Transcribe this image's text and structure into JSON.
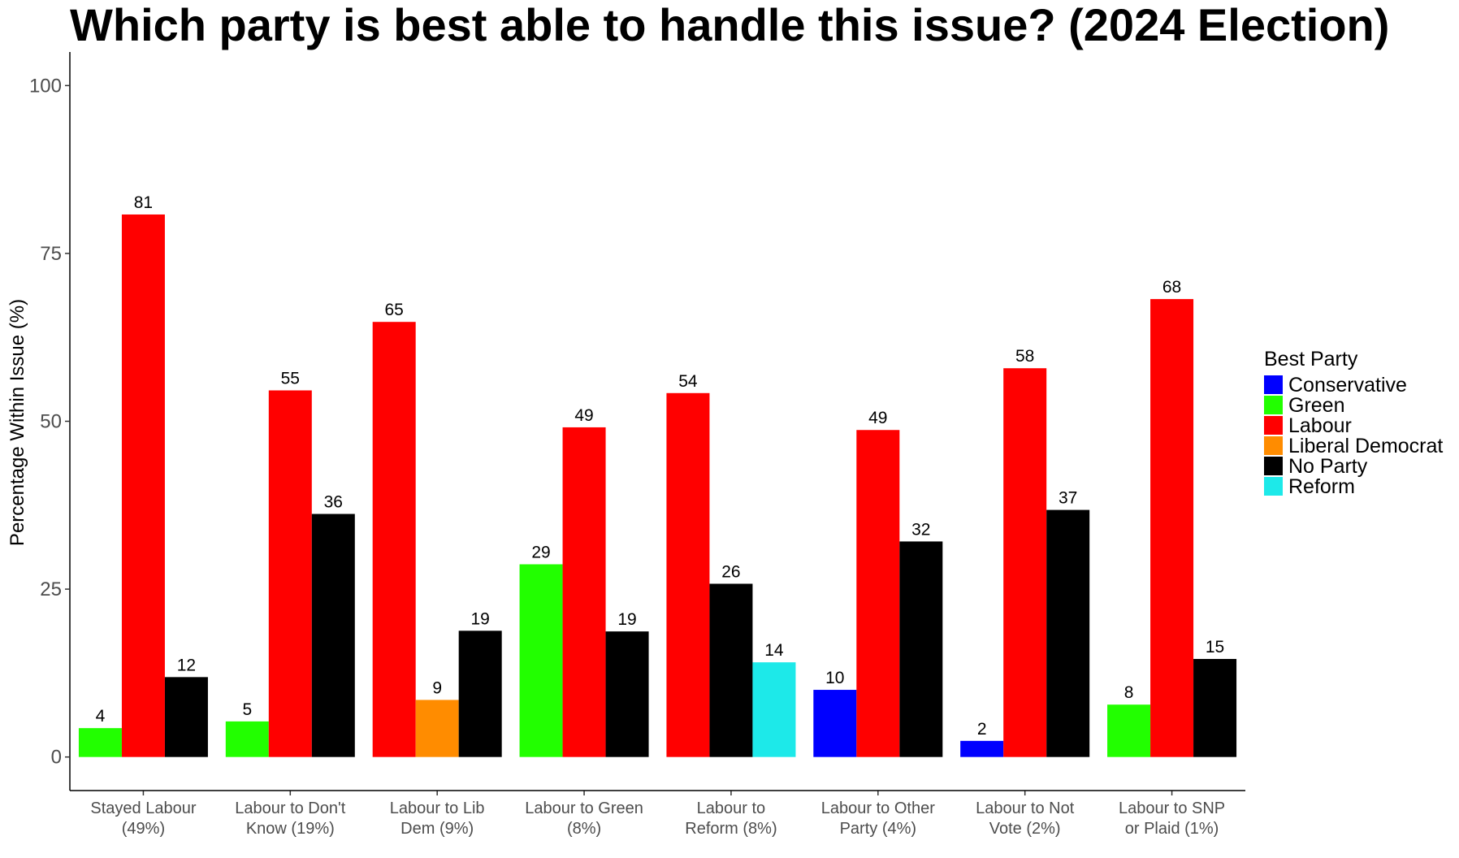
{
  "chart_data": {
    "type": "bar",
    "title": "Which party is best able to handle this issue? (2024 Election)",
    "xlabel": "",
    "ylabel": "Percentage Within Issue (%)",
    "ylim": [
      -5,
      105
    ],
    "yticks": [
      0,
      25,
      50,
      75,
      100
    ],
    "grid": false,
    "legend": {
      "title": "Best Party",
      "placement": "right",
      "entries": [
        {
          "name": "Conservative",
          "color": "#0000ff"
        },
        {
          "name": "Green",
          "color": "#22ff00"
        },
        {
          "name": "Labour",
          "color": "#ff0000"
        },
        {
          "name": "Liberal Democrat",
          "color": "#ff8c00"
        },
        {
          "name": "No Party",
          "color": "#000000"
        },
        {
          "name": "Reform",
          "color": "#1de9e9"
        }
      ]
    },
    "categories": [
      {
        "label_lines": [
          "Stayed Labour",
          "(49%)"
        ],
        "bars": [
          {
            "party": "Green",
            "value": 4.3,
            "label": "4"
          },
          {
            "party": "Labour",
            "value": 80.8,
            "label": "81"
          },
          {
            "party": "No Party",
            "value": 11.9,
            "label": "12"
          }
        ]
      },
      {
        "label_lines": [
          "Labour to Don't",
          "Know (19%)"
        ],
        "bars": [
          {
            "party": "Green",
            "value": 5.3,
            "label": "5"
          },
          {
            "party": "Labour",
            "value": 54.6,
            "label": "55"
          },
          {
            "party": "No Party",
            "value": 36.2,
            "label": "36"
          }
        ]
      },
      {
        "label_lines": [
          "Labour to Lib",
          "Dem (9%)"
        ],
        "bars": [
          {
            "party": "Labour",
            "value": 64.8,
            "label": "65"
          },
          {
            "party": "Liberal Democrat",
            "value": 8.5,
            "label": "9"
          },
          {
            "party": "No Party",
            "value": 18.8,
            "label": "19"
          }
        ]
      },
      {
        "label_lines": [
          "Labour to Green",
          "(8%)"
        ],
        "bars": [
          {
            "party": "Green",
            "value": 28.7,
            "label": "29"
          },
          {
            "party": "Labour",
            "value": 49.1,
            "label": "49"
          },
          {
            "party": "No Party",
            "value": 18.7,
            "label": "19"
          }
        ]
      },
      {
        "label_lines": [
          "Labour to",
          "Reform (8%)"
        ],
        "bars": [
          {
            "party": "Labour",
            "value": 54.2,
            "label": "54"
          },
          {
            "party": "No Party",
            "value": 25.8,
            "label": "26"
          },
          {
            "party": "Reform",
            "value": 14.1,
            "label": "14"
          }
        ]
      },
      {
        "label_lines": [
          "Labour to Other",
          "Party (4%)"
        ],
        "bars": [
          {
            "party": "Conservative",
            "value": 10.0,
            "label": "10"
          },
          {
            "party": "Labour",
            "value": 48.7,
            "label": "49"
          },
          {
            "party": "No Party",
            "value": 32.1,
            "label": "32"
          }
        ]
      },
      {
        "label_lines": [
          "Labour to Not",
          "Vote (2%)"
        ],
        "bars": [
          {
            "party": "Conservative",
            "value": 2.4,
            "label": "2"
          },
          {
            "party": "Labour",
            "value": 57.9,
            "label": "58"
          },
          {
            "party": "No Party",
            "value": 36.8,
            "label": "37"
          }
        ]
      },
      {
        "label_lines": [
          "Labour to SNP",
          "or Plaid (1%)"
        ],
        "bars": [
          {
            "party": "Green",
            "value": 7.8,
            "label": "8"
          },
          {
            "party": "Labour",
            "value": 68.2,
            "label": "68"
          },
          {
            "party": "No Party",
            "value": 14.6,
            "label": "15"
          }
        ]
      }
    ]
  }
}
